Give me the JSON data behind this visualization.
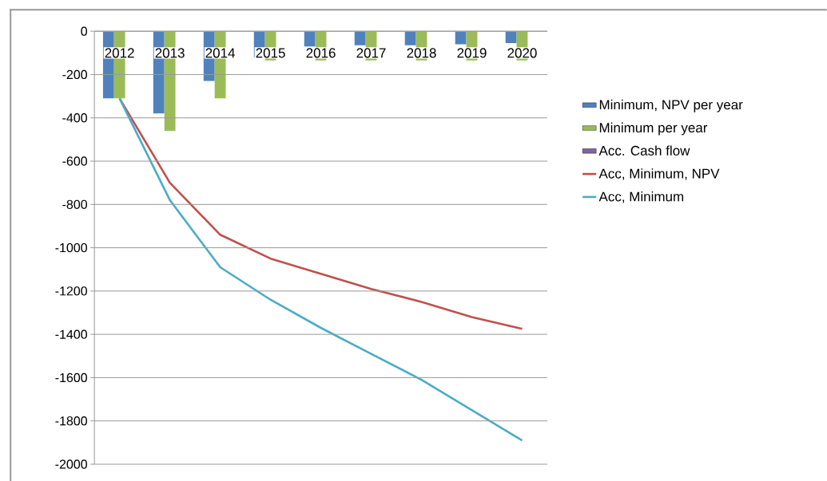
{
  "chart_data": {
    "type": "bar",
    "categories": [
      "2012",
      "2013",
      "2014",
      "2015",
      "2016",
      "2017",
      "2018",
      "2019",
      "2020"
    ],
    "series": [
      {
        "name": "Minimum, NPV per year",
        "color": "#4f81bd",
        "values": [
          -310,
          -380,
          -230,
          -120,
          -70,
          -65,
          -65,
          -60,
          -55
        ]
      },
      {
        "name": "Minimum per year",
        "color": "#9bbb59",
        "values": [
          -310,
          -460,
          -310,
          -135,
          -135,
          -135,
          -135,
          -135,
          -135
        ]
      },
      {
        "name": "Acc. Cash flow",
        "color": "#8064a2",
        "values": [
          null,
          null,
          null,
          null,
          null,
          null,
          null,
          null,
          null
        ]
      },
      {
        "name": "Acc, Minimum, NPV",
        "type": "line",
        "color": "#c0504d",
        "values": [
          -310,
          -700,
          -940,
          -1050,
          -1120,
          -1190,
          -1250,
          -1320,
          -1375
        ]
      },
      {
        "name": "Acc, Minimum",
        "type": "line",
        "color": "#4bacc6",
        "values": [
          -310,
          -780,
          -1090,
          -1240,
          -1370,
          -1490,
          -1610,
          -1750,
          -1890
        ]
      }
    ],
    "ylim": [
      -2000,
      0
    ],
    "yticks": [
      -2000,
      -1800,
      -1600,
      -1400,
      -1200,
      -1000,
      -800,
      -600,
      -400,
      -200,
      0
    ],
    "grid": "y",
    "legend": "right"
  }
}
